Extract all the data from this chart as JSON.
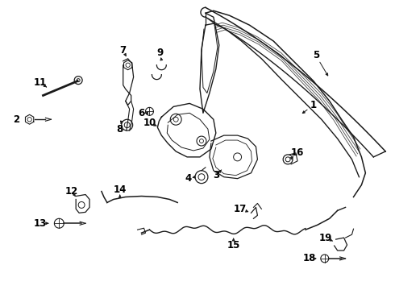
{
  "bg_color": "#ffffff",
  "line_color": "#1a1a1a",
  "text_color": "#000000",
  "font_size": 8.5,
  "figw": 4.9,
  "figh": 3.6,
  "dpi": 100
}
